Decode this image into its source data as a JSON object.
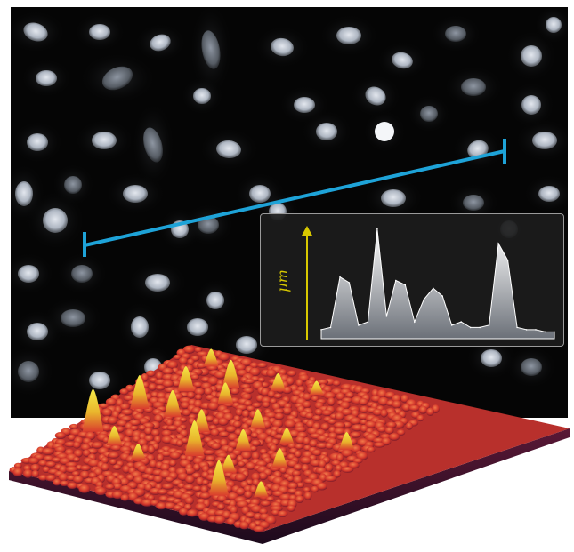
{
  "profile_panel": {
    "y_axis_label": "µm"
  },
  "colors": {
    "background": "#050505",
    "nucleus": "#c9d0da",
    "scan_line": "#1ea3d8",
    "profile_fill": "#e6e9ee",
    "axis_arrow": "#d8c800",
    "surface_base": "#d93b2d",
    "surface_peak": "#f0e23a",
    "surface_shadow": "#3a1430"
  },
  "chart_data": {
    "type": "area",
    "title": "",
    "xlabel": "",
    "ylabel": "µm",
    "x": [
      0,
      4,
      8,
      12,
      16,
      20,
      24,
      28,
      32,
      36,
      40,
      44,
      48,
      52,
      56,
      60,
      64,
      68,
      72,
      76,
      80,
      84,
      88,
      92,
      96,
      100
    ],
    "y": [
      0.08,
      0.1,
      0.55,
      0.5,
      0.12,
      0.15,
      0.98,
      0.2,
      0.52,
      0.48,
      0.15,
      0.35,
      0.45,
      0.38,
      0.12,
      0.15,
      0.1,
      0.1,
      0.12,
      0.85,
      0.7,
      0.1,
      0.08,
      0.08,
      0.06,
      0.06
    ],
    "ylim": [
      0,
      1
    ]
  }
}
